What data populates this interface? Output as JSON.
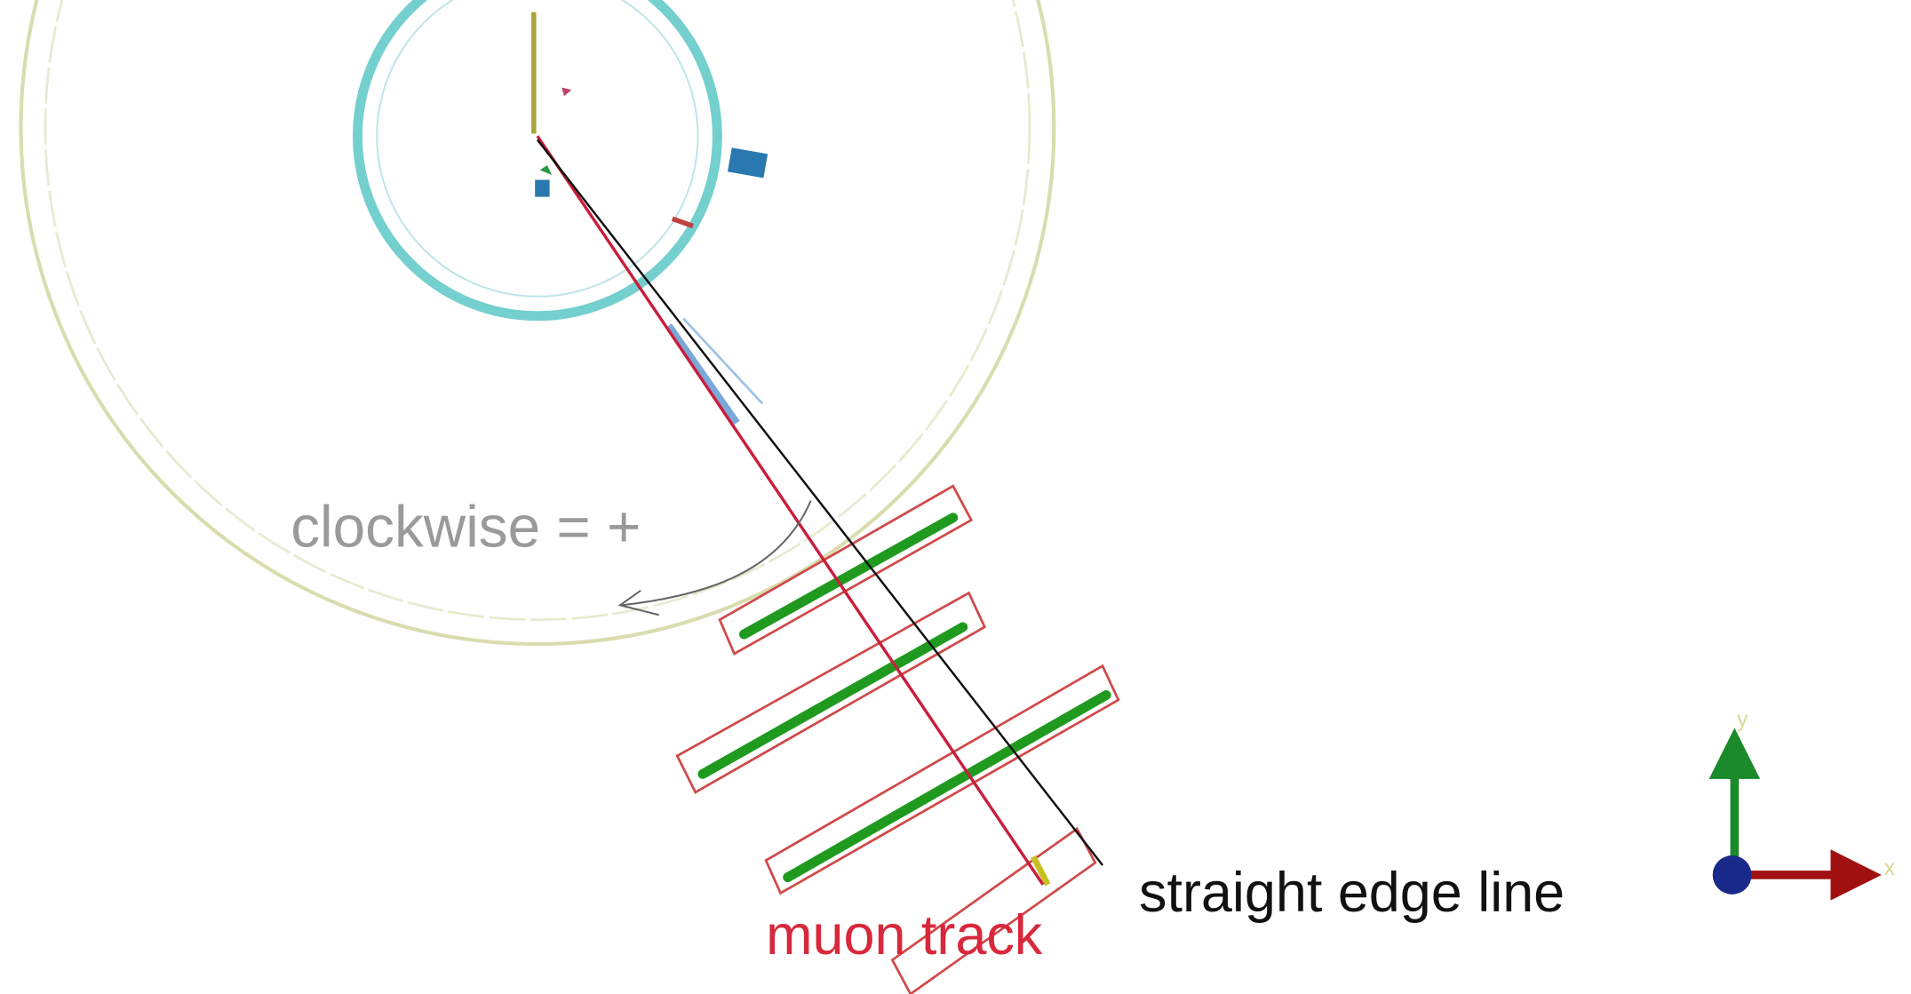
{
  "annotations": {
    "rotation": "clockwise = +",
    "edge_line": "straight edge line",
    "track": "muon track"
  },
  "axes_icon": {
    "y": "y",
    "x": "x"
  }
}
